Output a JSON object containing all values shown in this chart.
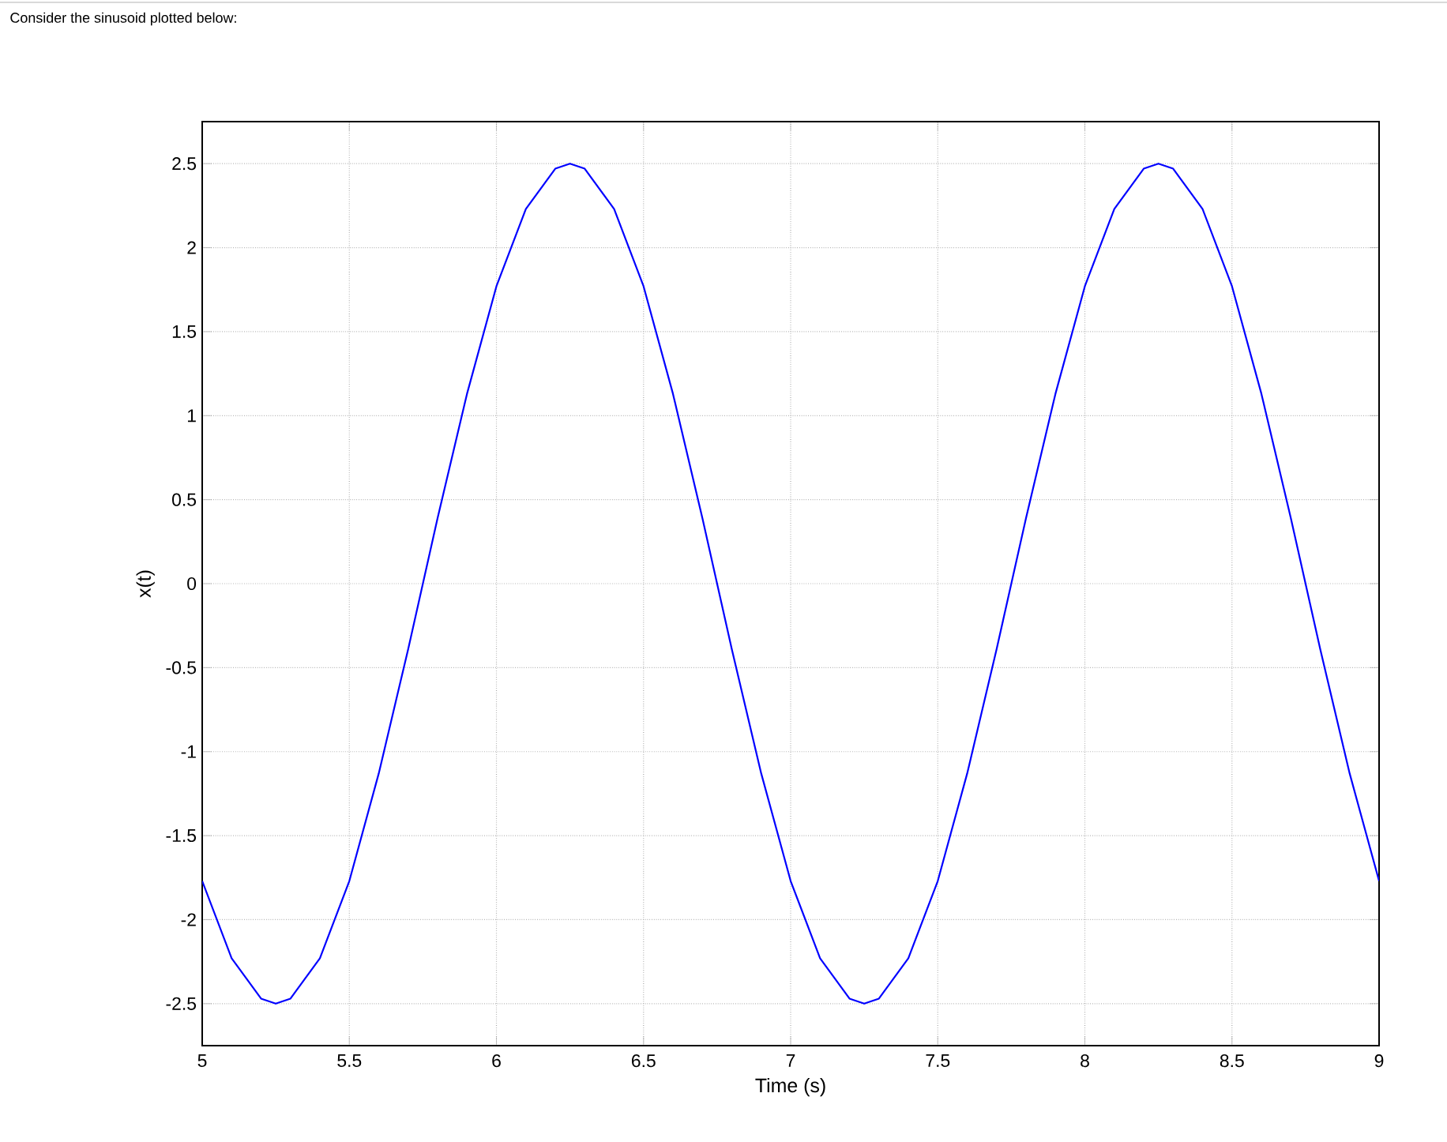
{
  "chart_data": {
    "type": "line",
    "title": "Consider the sinusoid plotted below:",
    "xlabel": "Time (s)",
    "ylabel": "x(t)",
    "x": [
      5,
      5.1,
      5.2,
      5.25,
      5.3,
      5.4,
      5.5,
      5.6,
      5.7,
      5.8,
      5.9,
      6,
      6.1,
      6.2,
      6.25,
      6.3,
      6.4,
      6.5,
      6.6,
      6.7,
      6.8,
      6.9,
      7,
      7.1,
      7.2,
      7.25,
      7.3,
      7.4,
      7.5,
      7.6,
      7.7,
      7.8,
      7.9,
      8,
      8.1,
      8.2,
      8.25,
      8.3,
      8.4,
      8.5,
      8.6,
      8.7,
      8.8,
      8.9,
      9
    ],
    "series": [
      {
        "color": "#0000ff",
        "values": [
          -1.77,
          -2.23,
          -2.47,
          -2.5,
          -2.47,
          -2.23,
          -1.77,
          -1.13,
          -0.39,
          0.39,
          1.13,
          1.77,
          2.23,
          2.47,
          2.5,
          2.47,
          2.23,
          1.77,
          1.13,
          0.39,
          -0.39,
          -1.13,
          -1.77,
          -2.23,
          -2.47,
          -2.5,
          -2.47,
          -2.23,
          -1.77,
          -1.13,
          -0.39,
          0.39,
          1.13,
          1.77,
          2.23,
          2.47,
          2.5,
          2.47,
          2.23,
          1.77,
          1.13,
          0.39,
          -0.39,
          -1.13,
          -1.77
        ]
      }
    ],
    "xlim": [
      5,
      9
    ],
    "ylim": [
      -2.75,
      2.75
    ],
    "xticks": [
      5,
      5.5,
      6,
      6.5,
      7,
      7.5,
      8,
      8.5,
      9
    ],
    "yticks": [
      -2.5,
      -2,
      -1.5,
      -1,
      -0.5,
      0,
      0.5,
      1,
      1.5,
      2,
      2.5
    ],
    "grid": true,
    "marker": "none",
    "line_style": "solid"
  }
}
